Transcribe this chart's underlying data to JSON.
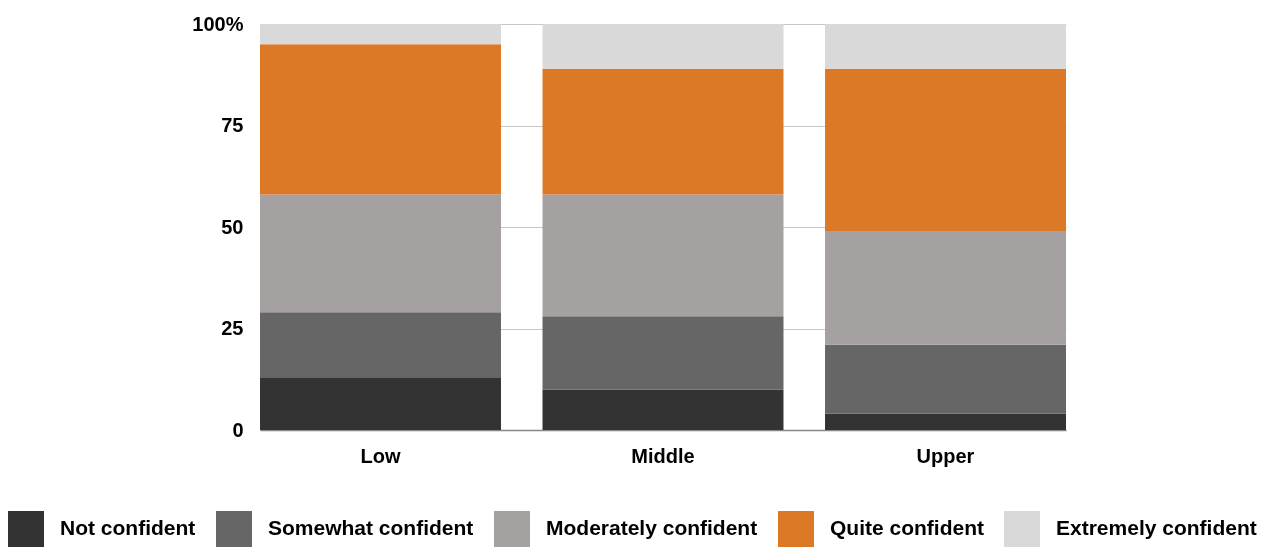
{
  "chart_data": {
    "type": "bar",
    "categories": [
      "Low",
      "Middle",
      "Upper"
    ],
    "stacked": true,
    "series": [
      {
        "name": "Not confident",
        "color": "#333333",
        "values": [
          13,
          10,
          4
        ]
      },
      {
        "name": "Somewhat confident",
        "color": "#666666",
        "values": [
          16,
          18,
          17
        ]
      },
      {
        "name": "Moderately confident",
        "color": "#a4a1a0",
        "values": [
          29,
          30,
          28
        ]
      },
      {
        "name": "Quite confident",
        "color": "#dc7927",
        "values": [
          37,
          31,
          40
        ]
      },
      {
        "name": "Extremely confident",
        "color": "#d9d9d9",
        "values": [
          5,
          11,
          11
        ]
      }
    ],
    "ylim": [
      0,
      100
    ],
    "yticks": [
      0,
      25,
      50,
      75,
      {
        "value": 100,
        "label": "100%"
      }
    ],
    "grid": "y",
    "legend": "bottom"
  }
}
